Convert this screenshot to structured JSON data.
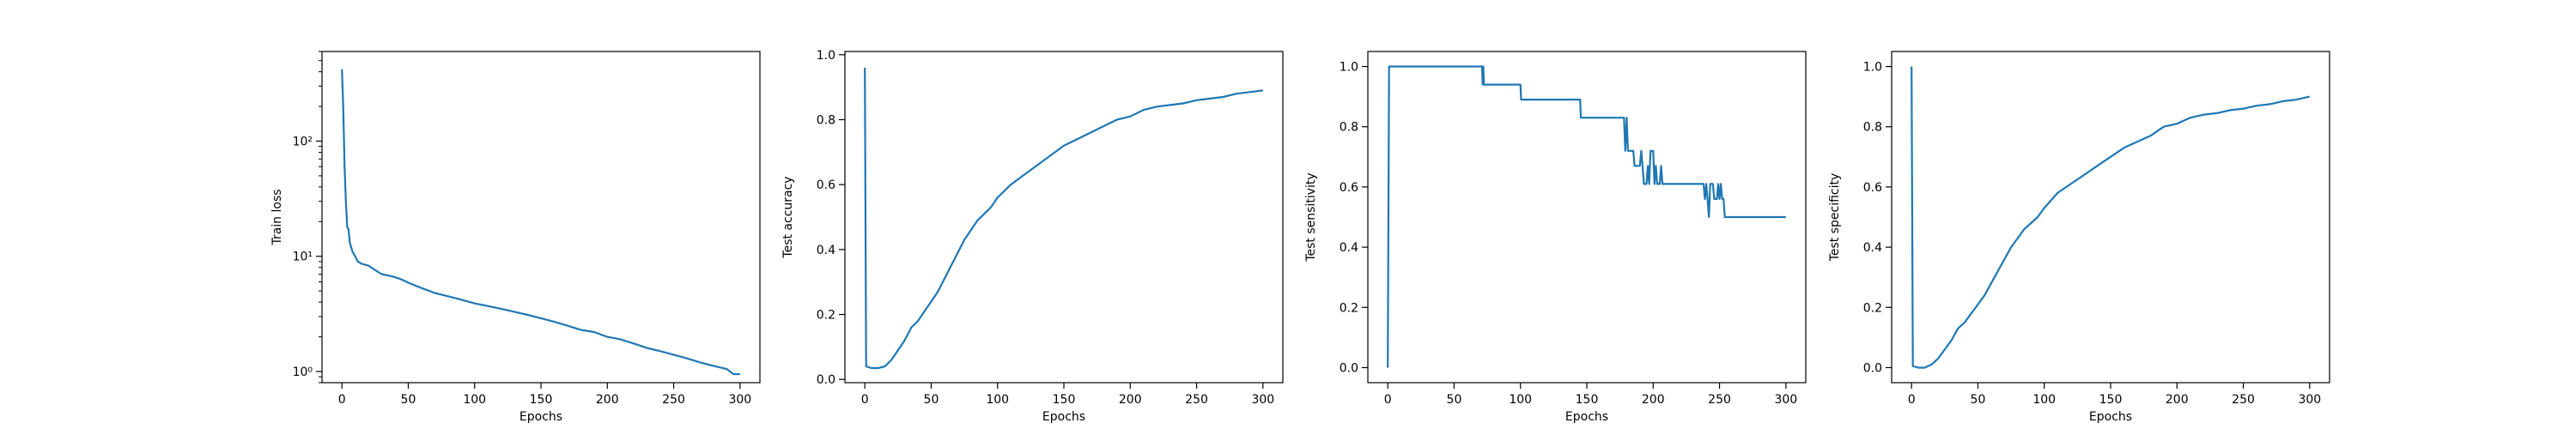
{
  "figure": {
    "line_color": "#1f77b4"
  },
  "chart_data": [
    {
      "type": "line",
      "xlabel": "Epochs",
      "ylabel": "Train loss",
      "yscale": "log",
      "xlim": [
        -15,
        315
      ],
      "ylim": [
        0.8,
        600
      ],
      "xticks": [
        0,
        50,
        100,
        150,
        200,
        250,
        300
      ],
      "yticks": [
        1,
        10,
        100
      ],
      "ytick_labels": [
        "10⁰",
        "10¹",
        "10²"
      ],
      "series": [
        {
          "x": [
            0,
            1,
            2,
            3,
            4,
            5,
            6,
            8,
            10,
            12,
            15,
            20,
            25,
            30,
            35,
            40,
            45,
            50,
            60,
            70,
            80,
            90,
            100,
            110,
            120,
            130,
            140,
            150,
            160,
            170,
            180,
            190,
            200,
            210,
            220,
            230,
            240,
            250,
            260,
            270,
            280,
            290,
            295,
            300
          ],
          "y": [
            420,
            200,
            60,
            30,
            18,
            17,
            13,
            11,
            10,
            9,
            8.6,
            8.3,
            7.6,
            7.0,
            6.8,
            6.6,
            6.3,
            5.9,
            5.3,
            4.8,
            4.5,
            4.2,
            3.9,
            3.7,
            3.5,
            3.3,
            3.1,
            2.9,
            2.7,
            2.5,
            2.3,
            2.2,
            2.0,
            1.9,
            1.75,
            1.6,
            1.5,
            1.4,
            1.3,
            1.2,
            1.12,
            1.05,
            0.95,
            0.95
          ]
        }
      ]
    },
    {
      "type": "line",
      "xlabel": "Epochs",
      "ylabel": "Test accuracy",
      "xlim": [
        -15,
        315
      ],
      "ylim": [
        -0.01,
        1.01
      ],
      "xticks": [
        0,
        50,
        100,
        150,
        200,
        250,
        300
      ],
      "yticks": [
        0.0,
        0.2,
        0.4,
        0.6,
        0.8,
        1.0
      ],
      "ytick_labels": [
        "0.0",
        "0.2",
        "0.4",
        "0.6",
        "0.8",
        "1.0"
      ],
      "series": [
        {
          "x": [
            0,
            1,
            5,
            10,
            15,
            20,
            25,
            30,
            35,
            40,
            45,
            50,
            55,
            60,
            65,
            70,
            75,
            80,
            85,
            90,
            95,
            100,
            110,
            120,
            130,
            140,
            150,
            160,
            170,
            180,
            190,
            200,
            210,
            220,
            230,
            240,
            250,
            260,
            270,
            280,
            290,
            300
          ],
          "y": [
            0.96,
            0.04,
            0.035,
            0.035,
            0.04,
            0.06,
            0.09,
            0.12,
            0.16,
            0.18,
            0.21,
            0.24,
            0.27,
            0.31,
            0.35,
            0.39,
            0.43,
            0.46,
            0.49,
            0.51,
            0.53,
            0.56,
            0.6,
            0.63,
            0.66,
            0.69,
            0.72,
            0.74,
            0.76,
            0.78,
            0.8,
            0.81,
            0.83,
            0.84,
            0.845,
            0.85,
            0.86,
            0.865,
            0.87,
            0.88,
            0.885,
            0.89
          ]
        }
      ]
    },
    {
      "type": "line",
      "xlabel": "Epochs",
      "ylabel": "Test sensitivity",
      "xlim": [
        -15,
        315
      ],
      "ylim": [
        -0.05,
        1.05
      ],
      "xticks": [
        0,
        50,
        100,
        150,
        200,
        250,
        300
      ],
      "yticks": [
        0.0,
        0.2,
        0.4,
        0.6,
        0.8,
        1.0
      ],
      "ytick_labels": [
        "0.0",
        "0.2",
        "0.4",
        "0.6",
        "0.8",
        "1.0"
      ],
      "series": [
        {
          "x": [
            0,
            1,
            71,
            71.5,
            72,
            72.5,
            73,
            100,
            100.5,
            145,
            145.5,
            178,
            179,
            180,
            181,
            185,
            186,
            190,
            191,
            192,
            193,
            195,
            196,
            197,
            198,
            200,
            201,
            202,
            203,
            205,
            206,
            207,
            208,
            210,
            238,
            239,
            240,
            241,
            242,
            243,
            245,
            246,
            248,
            249,
            250,
            251,
            252,
            253,
            254,
            255,
            256,
            257,
            300
          ],
          "y": [
            0.0,
            1.0,
            1.0,
            0.94,
            1.0,
            0.94,
            0.94,
            0.94,
            0.89,
            0.89,
            0.83,
            0.83,
            0.72,
            0.83,
            0.72,
            0.72,
            0.67,
            0.67,
            0.72,
            0.67,
            0.61,
            0.61,
            0.67,
            0.61,
            0.72,
            0.72,
            0.61,
            0.67,
            0.61,
            0.61,
            0.67,
            0.61,
            0.61,
            0.61,
            0.61,
            0.56,
            0.61,
            0.56,
            0.5,
            0.61,
            0.61,
            0.56,
            0.56,
            0.61,
            0.56,
            0.61,
            0.56,
            0.56,
            0.5,
            0.5,
            0.5,
            0.5,
            0.5
          ]
        }
      ]
    },
    {
      "type": "line",
      "xlabel": "Epochs",
      "ylabel": "Test specificity",
      "xlim": [
        -15,
        315
      ],
      "ylim": [
        -0.05,
        1.05
      ],
      "xticks": [
        0,
        50,
        100,
        150,
        200,
        250,
        300
      ],
      "yticks": [
        0.0,
        0.2,
        0.4,
        0.6,
        0.8,
        1.0
      ],
      "ytick_labels": [
        "0.0",
        "0.2",
        "0.4",
        "0.6",
        "0.8",
        "1.0"
      ],
      "series": [
        {
          "x": [
            0,
            1,
            5,
            10,
            15,
            20,
            25,
            30,
            35,
            40,
            45,
            50,
            55,
            60,
            65,
            70,
            75,
            80,
            85,
            90,
            95,
            100,
            110,
            120,
            130,
            140,
            150,
            160,
            170,
            180,
            190,
            200,
            210,
            220,
            230,
            240,
            250,
            260,
            270,
            280,
            290,
            300
          ],
          "y": [
            1.0,
            0.005,
            0.0,
            0.0,
            0.01,
            0.03,
            0.06,
            0.09,
            0.13,
            0.15,
            0.18,
            0.21,
            0.24,
            0.28,
            0.32,
            0.36,
            0.4,
            0.43,
            0.46,
            0.48,
            0.5,
            0.53,
            0.58,
            0.61,
            0.64,
            0.67,
            0.7,
            0.73,
            0.75,
            0.77,
            0.8,
            0.81,
            0.83,
            0.84,
            0.845,
            0.855,
            0.86,
            0.87,
            0.875,
            0.885,
            0.89,
            0.9
          ]
        }
      ]
    }
  ]
}
